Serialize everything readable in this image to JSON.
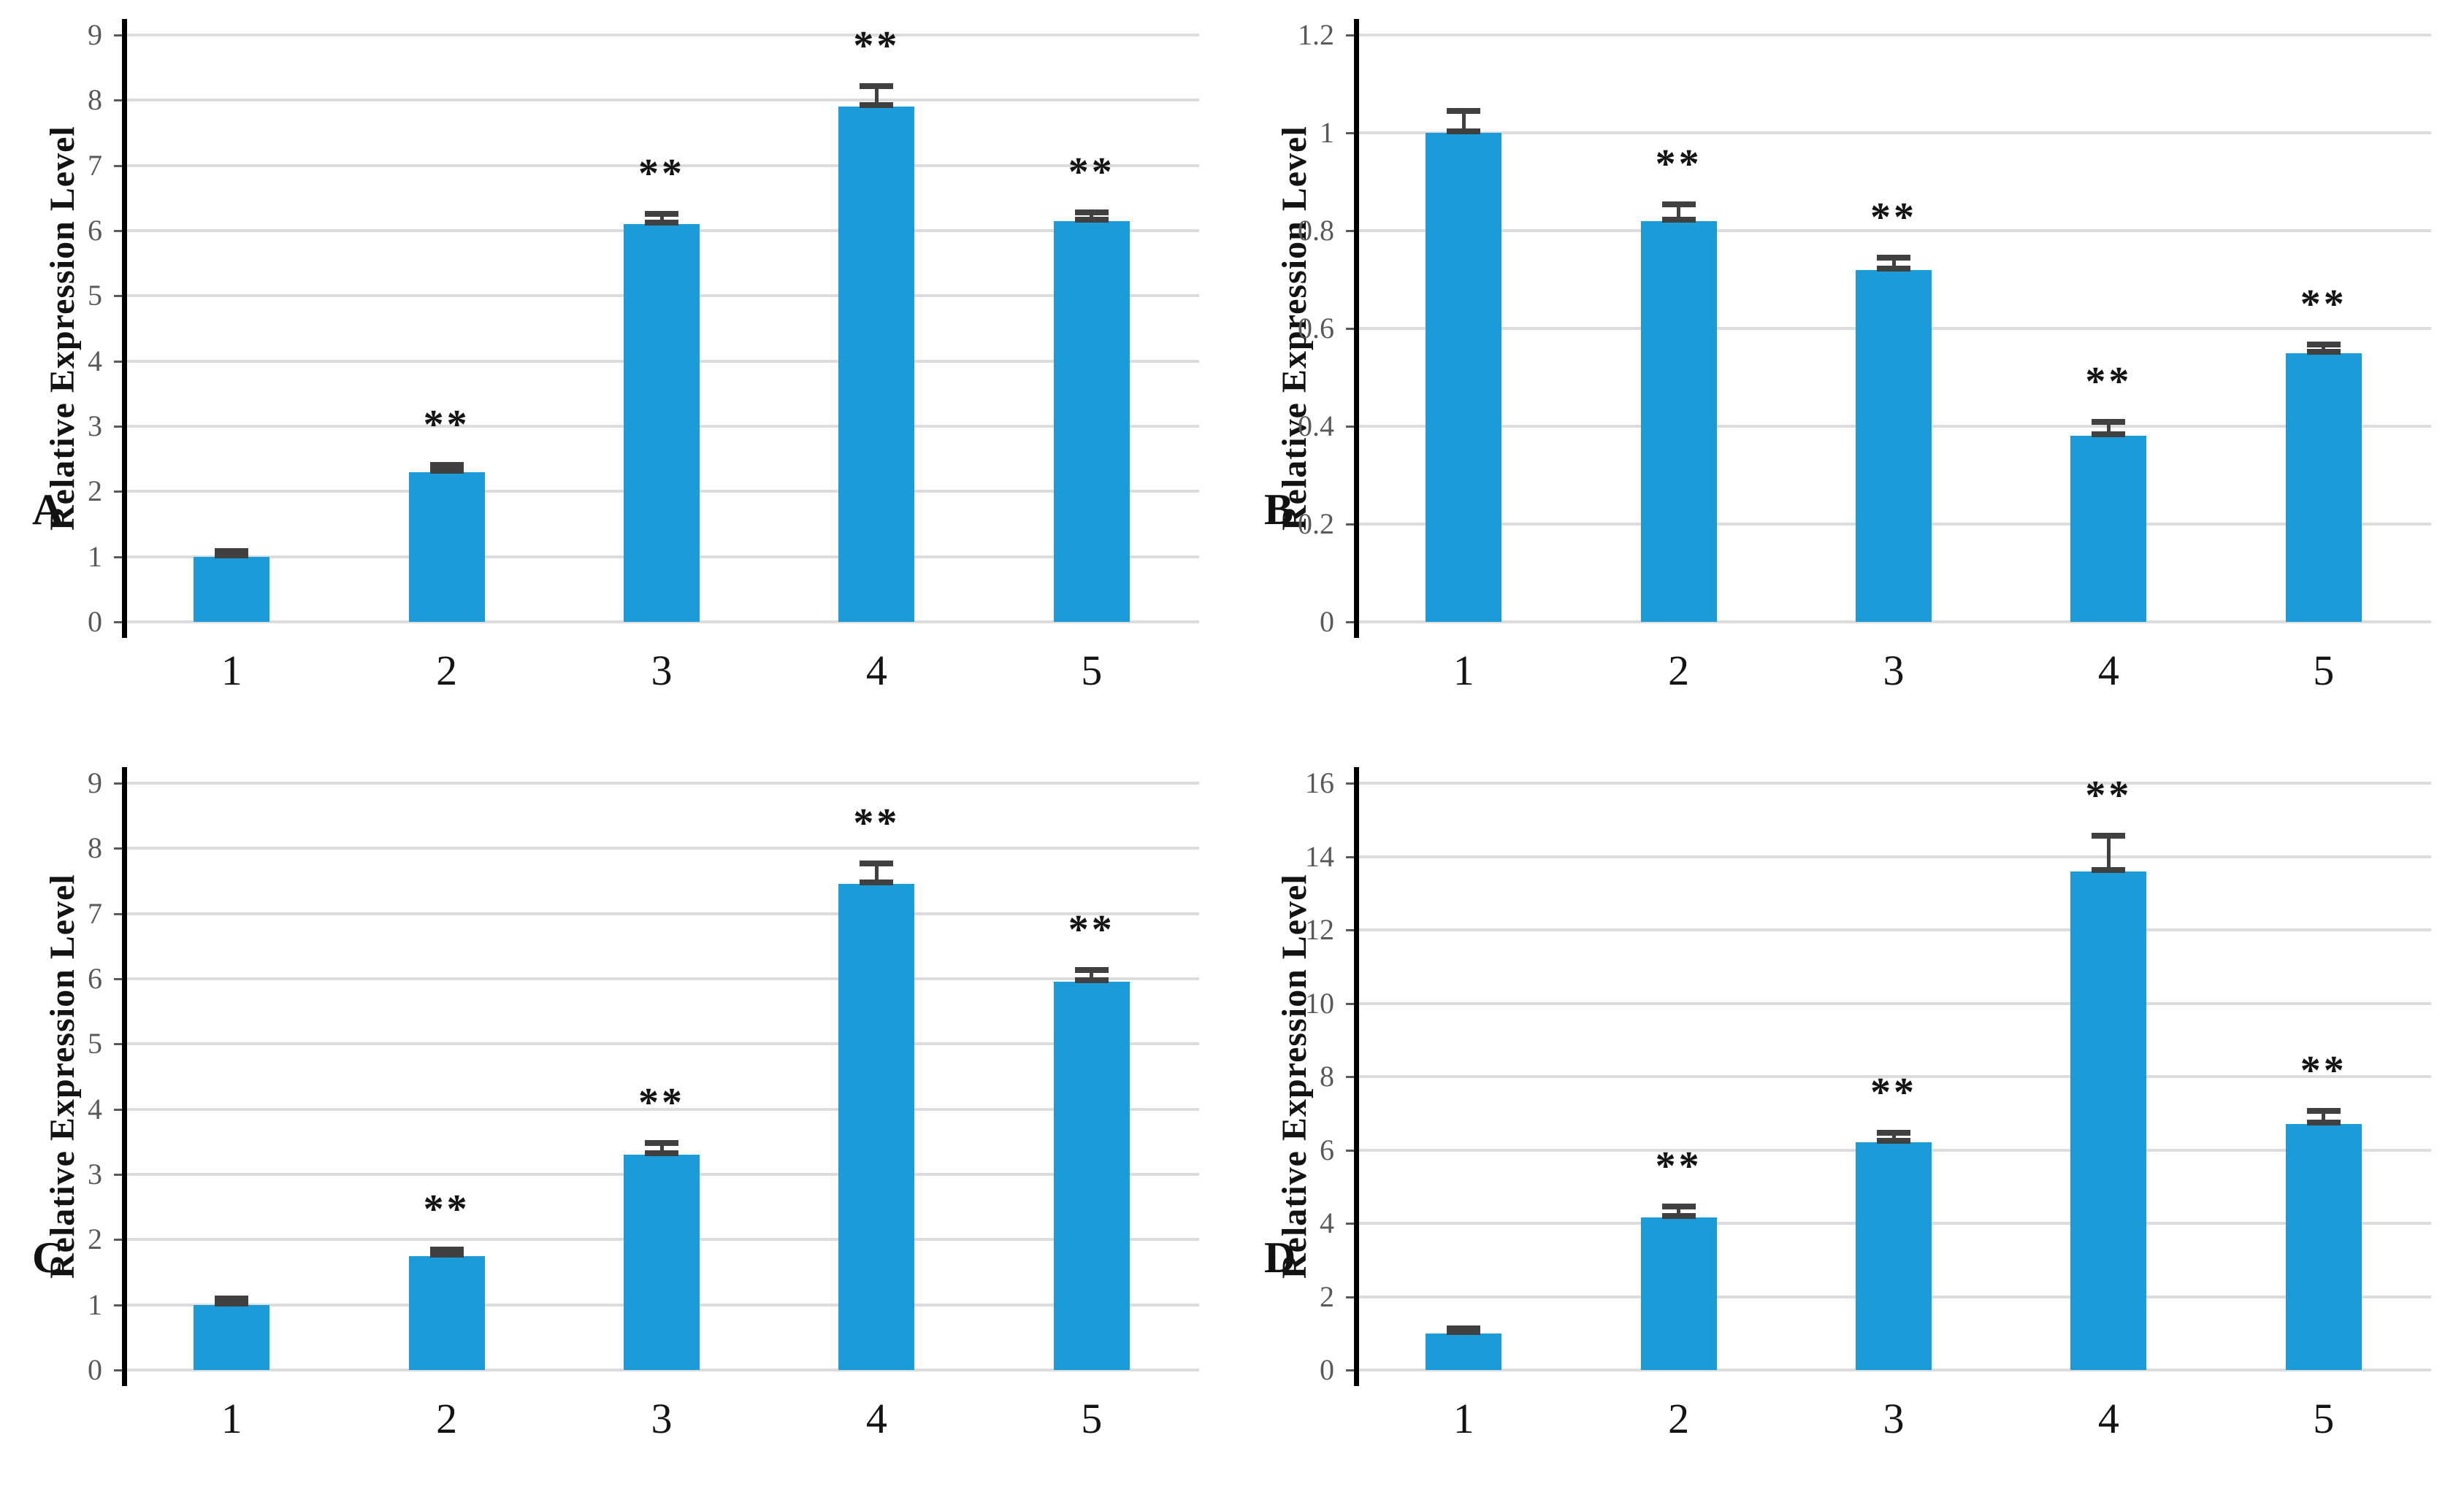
{
  "figure": {
    "background": "#ffffff",
    "bar_color": "#1b9cd9",
    "error_color": "#404040",
    "grid_color": "#dcdcdc",
    "spine_color": "#000000",
    "ytick_label_color": "#595959",
    "xtick_label_color": "#141414",
    "significance_marker": "**"
  },
  "chart_data": [
    {
      "type": "bar",
      "panel": "A",
      "ylabel": "Relative Expression Level",
      "categories": [
        "1",
        "2",
        "3",
        "4",
        "5"
      ],
      "values": [
        1.0,
        2.3,
        6.1,
        7.9,
        6.15
      ],
      "errors": [
        0.05,
        0.07,
        0.12,
        0.28,
        0.1
      ],
      "significance": [
        "",
        "**",
        "**",
        "**",
        "**"
      ],
      "ylim": [
        0,
        9
      ],
      "ytick_values": [
        0,
        1,
        2,
        3,
        4,
        5,
        6,
        7,
        8,
        9
      ],
      "ytick_labels": [
        "0",
        "1",
        "2",
        "3",
        "4",
        "5",
        "6",
        "7",
        "8",
        "9"
      ],
      "grid": true,
      "legend": "none"
    },
    {
      "type": "bar",
      "panel": "B",
      "ylabel": "Relative Expression Level",
      "categories": [
        "1",
        "2",
        "3",
        "4",
        "5"
      ],
      "values": [
        1.0,
        0.82,
        0.72,
        0.38,
        0.55
      ],
      "errors": [
        0.04,
        0.03,
        0.02,
        0.025,
        0.012
      ],
      "significance": [
        "",
        "**",
        "**",
        "**",
        "**"
      ],
      "ylim": [
        0,
        1.2
      ],
      "ytick_values": [
        0,
        0.2,
        0.4,
        0.6,
        0.8,
        1,
        1.2
      ],
      "ytick_labels": [
        "0",
        "0.2",
        "0.4",
        "0.6",
        "0.8",
        "1",
        "1.2"
      ],
      "grid": true,
      "legend": "none"
    },
    {
      "type": "bar",
      "panel": "C",
      "ylabel": "Relative Expression Level",
      "categories": [
        "1",
        "2",
        "3",
        "4",
        "5"
      ],
      "values": [
        1.0,
        1.75,
        3.3,
        7.45,
        5.95
      ],
      "errors": [
        0.06,
        0.06,
        0.15,
        0.28,
        0.15
      ],
      "significance": [
        "",
        "**",
        "**",
        "**",
        "**"
      ],
      "ylim": [
        0,
        9
      ],
      "ytick_values": [
        0,
        1,
        2,
        3,
        4,
        5,
        6,
        7,
        8,
        9
      ],
      "ytick_labels": [
        "0",
        "1",
        "2",
        "3",
        "4",
        "5",
        "6",
        "7",
        "8",
        "9"
      ],
      "grid": true,
      "legend": "none"
    },
    {
      "type": "bar",
      "panel": "D",
      "ylabel": "Relative Expression Level",
      "categories": [
        "1",
        "2",
        "3",
        "4",
        "5"
      ],
      "values": [
        1.0,
        4.15,
        6.2,
        13.6,
        6.7
      ],
      "errors": [
        0.08,
        0.25,
        0.2,
        0.9,
        0.3
      ],
      "significance": [
        "",
        "**",
        "**",
        "**",
        "**"
      ],
      "ylim": [
        0,
        16
      ],
      "ytick_values": [
        0,
        2,
        4,
        6,
        8,
        10,
        12,
        14,
        16
      ],
      "ytick_labels": [
        "0",
        "2",
        "4",
        "6",
        "8",
        "10",
        "12",
        "14",
        "16"
      ],
      "grid": true,
      "legend": "none"
    }
  ]
}
